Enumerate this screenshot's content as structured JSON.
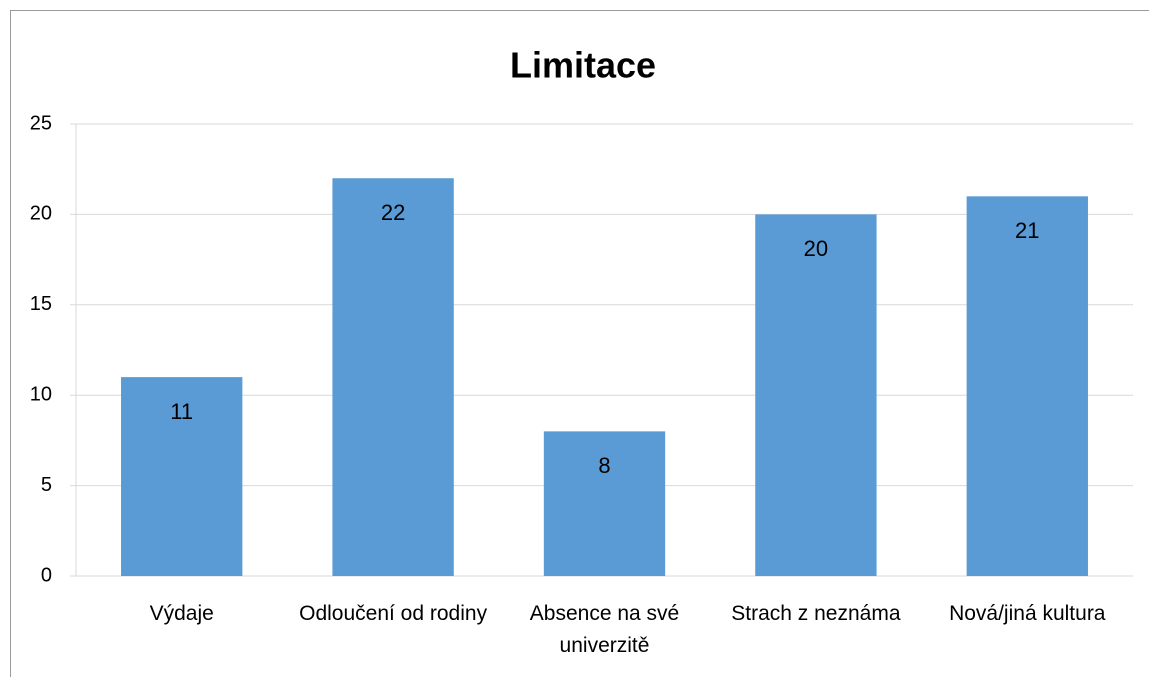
{
  "chart_data": {
    "type": "bar",
    "title": "Limitace",
    "categories": [
      "Výdaje",
      "Odloučení od rodiny",
      "Absence na své univerzitě",
      "Strach z neznáma",
      "Nová/jiná kultura"
    ],
    "values": [
      11,
      22,
      8,
      20,
      21
    ],
    "color": "#5b9bd5",
    "ylim": [
      0,
      25
    ],
    "yticks": [
      0,
      5,
      10,
      15,
      20,
      25
    ],
    "grid": true
  }
}
